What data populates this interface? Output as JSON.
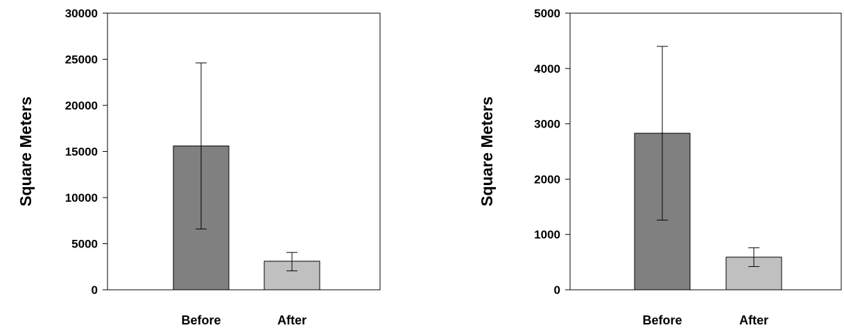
{
  "chart_data": [
    {
      "type": "bar",
      "categories": [
        "Before",
        "After"
      ],
      "values": [
        15600,
        3100
      ],
      "error_high": [
        24600,
        4050
      ],
      "error_low": [
        6600,
        2050
      ],
      "ylabel": "Square Meters",
      "xlabel": "",
      "ylim": [
        0,
        30000
      ],
      "yticks": [
        "0",
        "5000",
        "10000",
        "15000",
        "20000",
        "25000",
        "30000"
      ],
      "colors": [
        "#808080",
        "#c0c0c0"
      ],
      "grid": false
    },
    {
      "type": "bar",
      "categories": [
        "Before",
        "After"
      ],
      "values": [
        2830,
        590
      ],
      "error_high": [
        4400,
        760
      ],
      "error_low": [
        1260,
        420
      ],
      "ylabel": "Square Meters",
      "xlabel": "",
      "ylim": [
        0,
        5000
      ],
      "yticks": [
        "0",
        "1000",
        "2000",
        "3000",
        "4000",
        "5000"
      ],
      "colors": [
        "#808080",
        "#c0c0c0"
      ],
      "grid": false
    }
  ]
}
